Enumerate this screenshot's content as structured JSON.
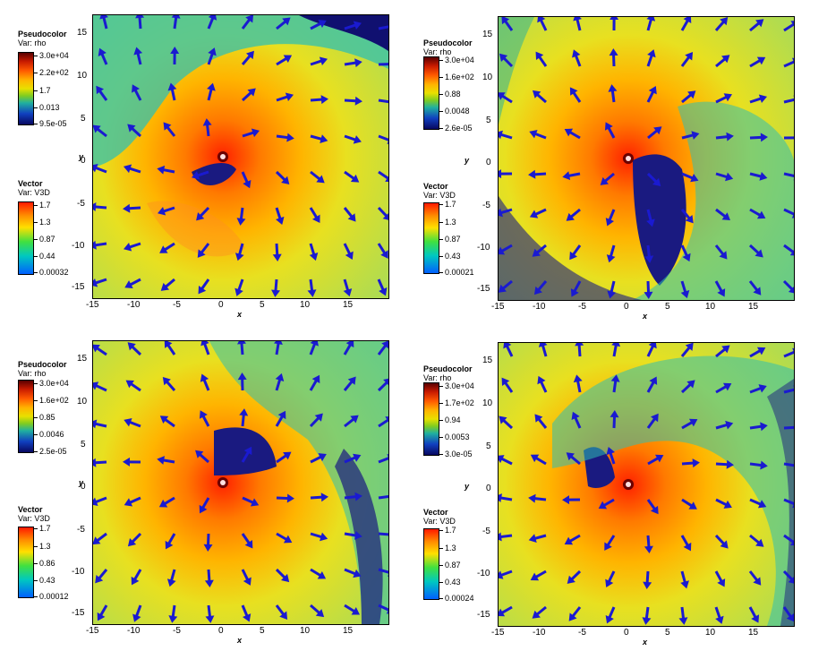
{
  "panels": [
    {
      "pseudocolor": {
        "title": "Pseudocolor",
        "var": "Var: rho",
        "ticks": [
          "3.0e+04",
          "2.2e+02",
          "1.7",
          "0.013",
          "9.5e-05"
        ]
      },
      "vector": {
        "title": "Vector",
        "var": "Var: V3D",
        "ticks": [
          "1.7",
          "1.3",
          "0.87",
          "0.44",
          "0.00032"
        ]
      }
    },
    {
      "pseudocolor": {
        "title": "Pseudocolor",
        "var": "Var: rho",
        "ticks": [
          "3.0e+04",
          "1.6e+02",
          "0.88",
          "0.0048",
          "2.6e-05"
        ]
      },
      "vector": {
        "title": "Vector",
        "var": "Var: V3D",
        "ticks": [
          "1.7",
          "1.3",
          "0.87",
          "0.43",
          "0.00021"
        ]
      }
    },
    {
      "pseudocolor": {
        "title": "Pseudocolor",
        "var": "Var: rho",
        "ticks": [
          "3.0e+04",
          "1.6e+02",
          "0.85",
          "0.0046",
          "2.5e-05"
        ]
      },
      "vector": {
        "title": "Vector",
        "var": "Var: V3D",
        "ticks": [
          "1.7",
          "1.3",
          "0.86",
          "0.43",
          "0.00012"
        ]
      }
    },
    {
      "pseudocolor": {
        "title": "Pseudocolor",
        "var": "Var: rho",
        "ticks": [
          "3.0e+04",
          "1.7e+02",
          "0.94",
          "0.0053",
          "3.0e-05"
        ]
      },
      "vector": {
        "title": "Vector",
        "var": "Var: V3D",
        "ticks": [
          "1.7",
          "1.3",
          "0.87",
          "0.43",
          "0.00024"
        ]
      }
    }
  ],
  "axes": {
    "xlabel": "x",
    "ylabel": "y",
    "xticks": [
      "-15",
      "-10",
      "-5",
      "0",
      "5",
      "10",
      "15"
    ],
    "yticks": [
      "15",
      "10",
      "5",
      "0",
      "-5",
      "-10",
      "-15"
    ]
  },
  "colors": {
    "arrow": "#1a1ad0",
    "background_field": "#c8e040",
    "core": "#ff6a00",
    "cavity": "#1a1a80"
  }
}
